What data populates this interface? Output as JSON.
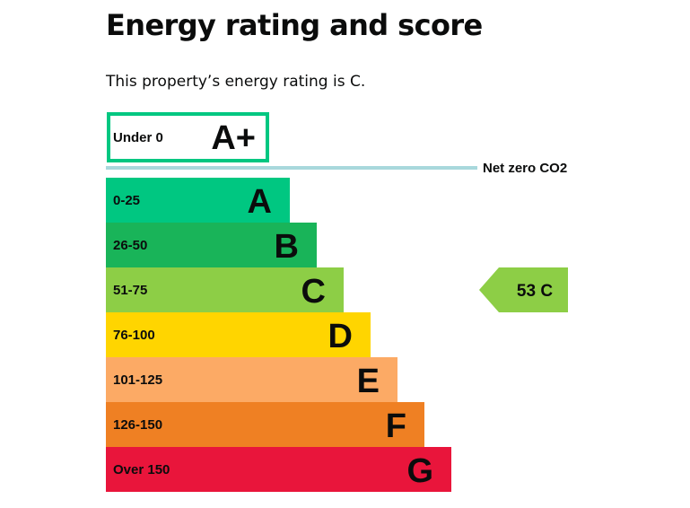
{
  "header": {
    "title": "Energy rating and score",
    "summary": "This property’s energy rating is C."
  },
  "chart_data": {
    "type": "bar",
    "title": "",
    "xlabel": "",
    "ylabel": "",
    "bands": [
      {
        "letter": "A+",
        "range": "Under 0",
        "color": "#ffffff",
        "border": "#00c781",
        "rank": 1
      },
      {
        "letter": "A",
        "range": "0-25",
        "color": "#00c781",
        "rank": 2
      },
      {
        "letter": "B",
        "range": "26-50",
        "color": "#19b459",
        "rank": 3
      },
      {
        "letter": "C",
        "range": "51-75",
        "color": "#8dce46",
        "rank": 4
      },
      {
        "letter": "D",
        "range": "76-100",
        "color": "#ffd500",
        "rank": 5
      },
      {
        "letter": "E",
        "range": "101-125",
        "color": "#fcaa65",
        "rank": 6
      },
      {
        "letter": "F",
        "range": "126-150",
        "color": "#ef8023",
        "rank": 7
      },
      {
        "letter": "G",
        "range": "Over 150",
        "color": "#e9153b",
        "rank": 8
      }
    ],
    "net_zero_label": "Net zero CO2",
    "net_zero_line_color": "#a8d8dc",
    "current": {
      "score": 53,
      "letter": "C",
      "color": "#8dce46"
    }
  }
}
